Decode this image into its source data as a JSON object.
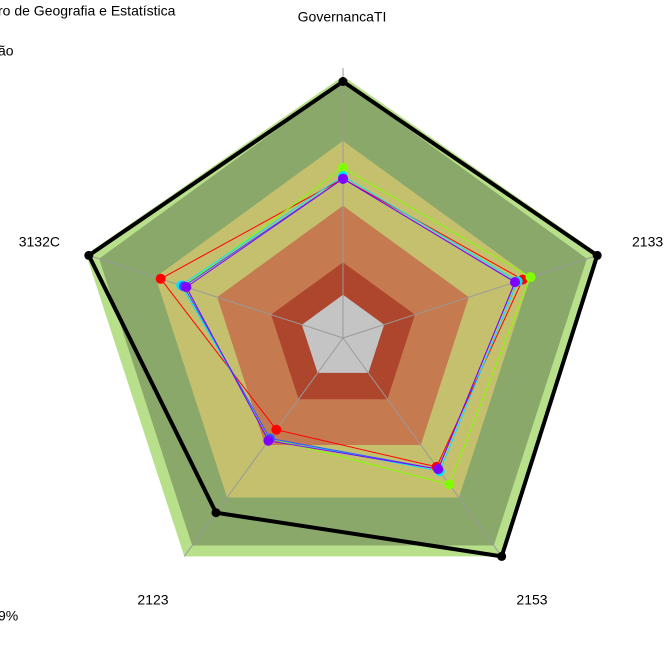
{
  "chart_data": {
    "type": "radar",
    "categories": [
      "GovernancaTI",
      "2133",
      "2153",
      "2123",
      "3132C"
    ],
    "ylim": [
      0,
      100
    ],
    "annotations": [
      "ro de Geografia e Estatística",
      "ão",
      "9%"
    ],
    "zones": [
      {
        "color": "#b8e08a",
        "values": [
          97,
          100,
          100,
          100,
          100
        ]
      },
      {
        "color": "#89a86a",
        "values": [
          95,
          95,
          95,
          95,
          95
        ]
      },
      {
        "color": "#c5c06e",
        "values": [
          73,
          73,
          73,
          73,
          73
        ]
      },
      {
        "color": "#c57a4f",
        "values": [
          49,
          49,
          49,
          49,
          49
        ]
      },
      {
        "color": "#ae452d",
        "values": [
          28,
          28,
          28,
          28,
          28
        ]
      },
      {
        "color": "#c4c4c4",
        "values": [
          16,
          16,
          16,
          16,
          16
        ]
      }
    ],
    "series": [
      {
        "color": "#000000",
        "values": [
          95,
          99,
          100,
          80,
          99
        ]
      },
      {
        "color": "#ff0000",
        "values": [
          59,
          70,
          59,
          42,
          71
        ]
      },
      {
        "color": "#80ff00",
        "values": [
          63,
          73,
          67,
          46,
          62
        ]
      },
      {
        "color": "#00e5ff",
        "values": [
          60,
          68,
          61,
          46,
          63
        ]
      },
      {
        "color": "#3355ff",
        "values": [
          59,
          67,
          60,
          46,
          62
        ]
      },
      {
        "color": "#8000ff",
        "values": [
          59,
          67,
          60,
          47,
          61
        ]
      }
    ]
  }
}
